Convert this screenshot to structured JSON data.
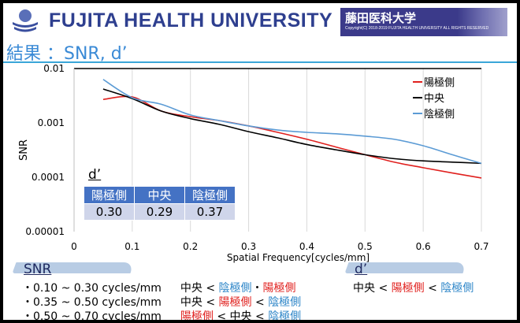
{
  "header": {
    "university": "FUJITA HEALTH UNIVERSITY",
    "banner_jp": "藤田医科大学",
    "copyright": "Copyright(C) 2018-2019 FUJITA HEALTH UNIVERSITY  ALL RIGHTS RESERVED"
  },
  "title": "結果 ：SNR, d’",
  "chart_data": {
    "type": "line",
    "xlabel": "Spatial Frequency[cycles/mm]",
    "ylabel": "SNR",
    "xlim": [
      0,
      0.7
    ],
    "ylim": [
      1e-05,
      0.01
    ],
    "yscale": "log",
    "xticks": [
      "0",
      "0.1",
      "0.2",
      "0.3",
      "0.4",
      "0.5",
      "0.6",
      "0.7"
    ],
    "yticks": [
      "0.01",
      "0.001",
      "0.0001",
      "0.00001"
    ],
    "grid": "vertical",
    "legend": "top-right",
    "x": [
      0.05,
      0.1,
      0.15,
      0.2,
      0.25,
      0.3,
      0.35,
      0.4,
      0.45,
      0.5,
      0.55,
      0.6,
      0.65,
      0.7
    ],
    "series": [
      {
        "name": "陽極側",
        "color": "#e0201e",
        "values": [
          0.0027,
          0.003,
          0.00165,
          0.0013,
          0.0011,
          0.00088,
          0.00067,
          0.0005,
          0.00036,
          0.00026,
          0.00019,
          0.00015,
          0.00012,
          9.7e-05
        ]
      },
      {
        "name": "中央",
        "color": "#000000",
        "values": [
          0.0042,
          0.0028,
          0.00165,
          0.0012,
          0.00094,
          0.00069,
          0.00053,
          0.0004,
          0.00032,
          0.00026,
          0.00022,
          0.0002,
          0.00019,
          0.00018
        ]
      },
      {
        "name": "陰極側",
        "color": "#5b9bd5",
        "values": [
          0.0063,
          0.0029,
          0.0022,
          0.0014,
          0.0011,
          0.00088,
          0.00074,
          0.00067,
          0.00063,
          0.00057,
          0.0005,
          0.00038,
          0.00026,
          0.00018
        ]
      }
    ]
  },
  "dprime_table": {
    "label": "d’",
    "headers": [
      "陽極側",
      "中央",
      "陰極側"
    ],
    "values": [
      "0.30",
      "0.29",
      "0.37"
    ]
  },
  "summary": {
    "snr_label": "SNR",
    "dprime_label": "d’",
    "rows": [
      {
        "range": "・0.10 ~ 0.30 cycles/mm",
        "a": "中央",
        "s1": " < ",
        "b": "陰極側",
        "s2": "・",
        "c": "陽極側"
      },
      {
        "range": "・0.35 ~ 0.50 cycles/mm",
        "a": "中央",
        "s1": " < ",
        "b": "陽極側",
        "s2": " < ",
        "c": "陰極側"
      },
      {
        "range": "・0.50 ~ 0.70 cycles/mm",
        "a": "陽極側",
        "s1": " < ",
        "b": "中央",
        "s2": " < ",
        "c": "陰極側"
      }
    ],
    "dprime": {
      "a": "中央",
      "s1": " < ",
      "b": "陽極側",
      "s2": " < ",
      "c": "陰極側"
    }
  }
}
